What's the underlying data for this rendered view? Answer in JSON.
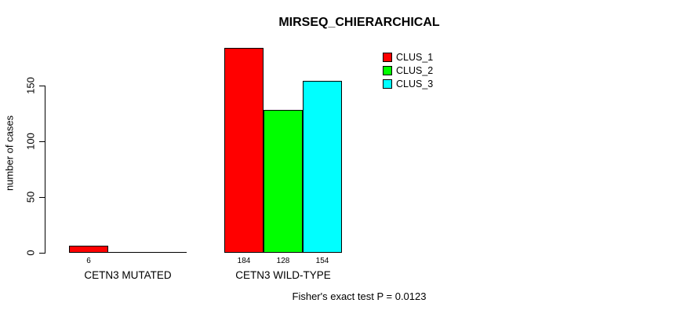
{
  "chart_data": {
    "type": "bar",
    "title": "MIRSEQ_CHIERARCHICAL",
    "ylabel": "number of cases",
    "xlabel": "",
    "categories": [
      "CETN3 MUTATED",
      "CETN3 WILD-TYPE"
    ],
    "series": [
      {
        "name": "CLUS_1",
        "color": "#ff0000",
        "values": [
          6,
          184
        ]
      },
      {
        "name": "CLUS_2",
        "color": "#00ff00",
        "values": [
          0,
          128
        ]
      },
      {
        "name": "CLUS_3",
        "color": "#00ffff",
        "values": [
          0,
          154
        ]
      }
    ],
    "bar_value_labels": [
      [
        "6",
        "",
        ""
      ],
      [
        "184",
        "128",
        "154"
      ]
    ],
    "yticks": [
      "0",
      "50",
      "100",
      "150"
    ],
    "ylim": [
      0,
      150
    ],
    "grid": false,
    "legend": {
      "position": "top-right",
      "entries": [
        "CLUS_1",
        "CLUS_2",
        "CLUS_3"
      ],
      "colors": [
        "#ff0000",
        "#00ff00",
        "#00ffff"
      ]
    },
    "annotation": "Fisher's exact test P = 0.0123"
  },
  "colors": {
    "background": "#ffffff",
    "text": "#000000",
    "axis": "#000000",
    "bar_border": "#000000"
  }
}
